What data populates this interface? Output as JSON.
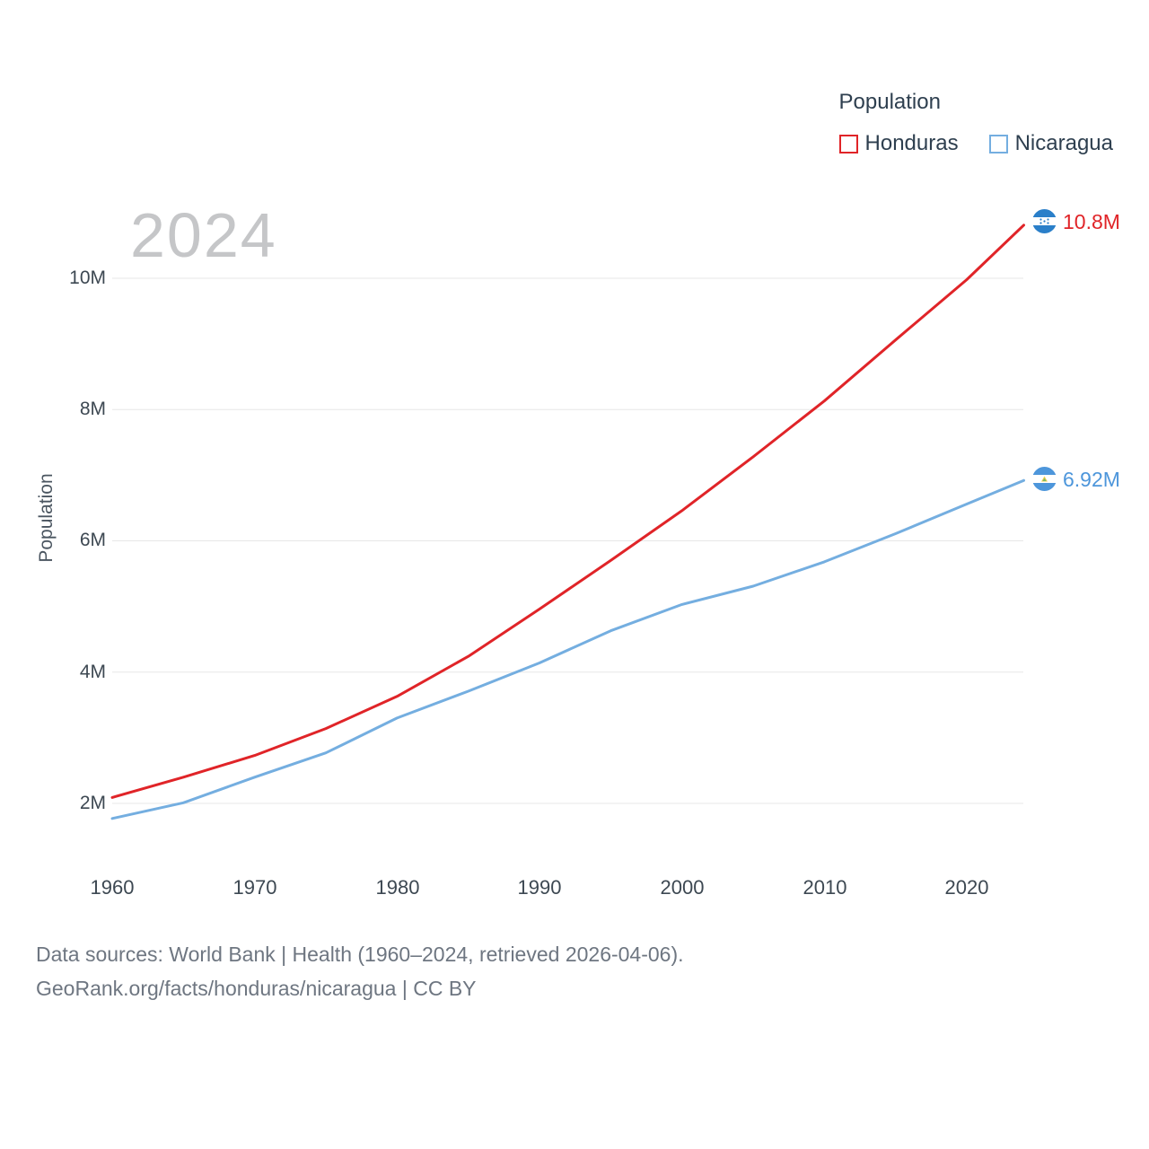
{
  "legend": {
    "title": "Population",
    "items": [
      {
        "label": "Honduras",
        "color": "#e02428"
      },
      {
        "label": "Nicaragua",
        "color": "#74aee0"
      }
    ]
  },
  "watermark": "2024",
  "y_axis": {
    "label": "Population",
    "ticks_top_to_bottom": [
      "10M",
      "8M",
      "6M",
      "4M",
      "2M"
    ]
  },
  "x_axis": {
    "ticks": [
      "1960",
      "1970",
      "1980",
      "1990",
      "2000",
      "2010",
      "2020"
    ]
  },
  "end_labels": {
    "honduras": "10.8M",
    "nicaragua": "6.92M"
  },
  "footer": {
    "line1": "Data sources: World Bank | Health (1960–2024, retrieved 2026-04-06).",
    "line2": "GeoRank.org/facts/honduras/nicaragua | CC BY"
  },
  "chart_data": {
    "type": "line",
    "title": "Population",
    "ylabel": "Population",
    "xlabel": "",
    "ylim": [
      1.5,
      11
    ],
    "xlim": [
      1960,
      2024
    ],
    "grid": "horizontal",
    "legend_position": "top-right",
    "gridline_values": [
      2,
      4,
      6,
      8,
      10
    ],
    "x": [
      1960,
      1965,
      1970,
      1975,
      1980,
      1985,
      1990,
      1995,
      2000,
      2005,
      2010,
      2015,
      2020,
      2024
    ],
    "series": [
      {
        "name": "Honduras",
        "color": "#e02428",
        "end_value_label": "10.8M",
        "values": [
          2.09,
          2.4,
          2.73,
          3.14,
          3.63,
          4.24,
          4.96,
          5.7,
          6.46,
          7.28,
          8.13,
          9.06,
          9.98,
          10.81
        ]
      },
      {
        "name": "Nicaragua",
        "color": "#74aee0",
        "end_value_label": "6.92M",
        "values": [
          1.77,
          2.01,
          2.4,
          2.77,
          3.3,
          3.71,
          4.14,
          4.63,
          5.03,
          5.31,
          5.68,
          6.11,
          6.56,
          6.92
        ]
      }
    ]
  }
}
